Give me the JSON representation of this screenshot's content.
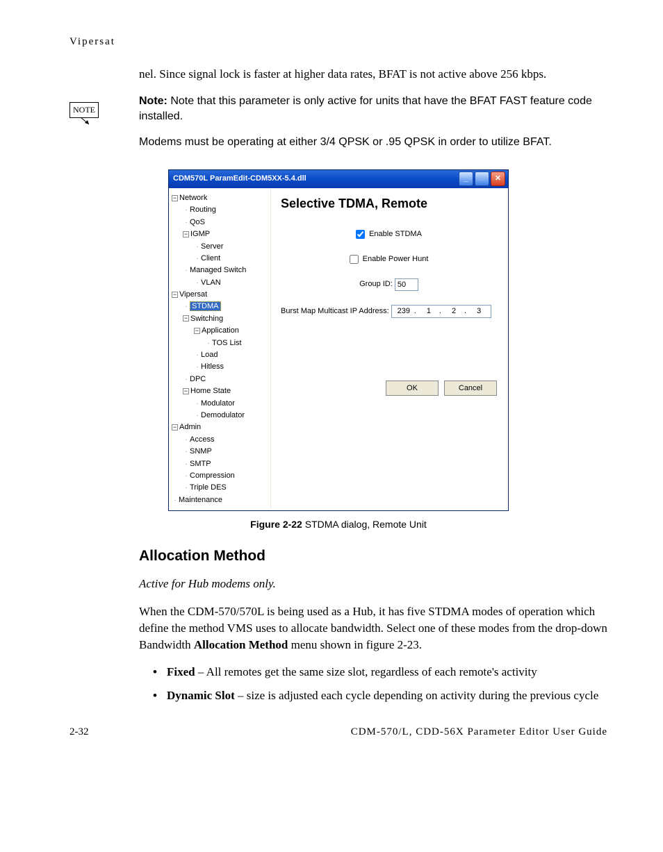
{
  "header": {
    "section": "Vipersat"
  },
  "paragraph_intro": "nel. Since signal lock is faster at higher data rates, BFAT is not active above 256 kbps.",
  "note": {
    "box_label": "NOTE",
    "prefix": "Note:",
    "line1": " Note that this parameter is only active for units that have the BFAT FAST feature code installed.",
    "line2": "Modems must be operating at either 3/4 QPSK or .95 QPSK in order to utilize BFAT."
  },
  "dialog": {
    "title": "CDM570L ParamEdit-CDM5XX-5.4.dll",
    "titlebar_bg_top": "#2a6bd8",
    "titlebar_bg_bottom": "#083aae",
    "body_bg": "#ffffff",
    "frame_bg": "#ece9d8",
    "tree": {
      "items": [
        {
          "label": "Network",
          "level": 0,
          "expanded": true
        },
        {
          "label": "Routing",
          "level": 1
        },
        {
          "label": "QoS",
          "level": 1
        },
        {
          "label": "IGMP",
          "level": 1,
          "expanded": true
        },
        {
          "label": "Server",
          "level": 2
        },
        {
          "label": "Client",
          "level": 2
        },
        {
          "label": "Managed Switch",
          "level": 1
        },
        {
          "label": "VLAN",
          "level": 2
        },
        {
          "label": "Vipersat",
          "level": 0,
          "expanded": true
        },
        {
          "label": "STDMA",
          "level": 1,
          "selected": true
        },
        {
          "label": "Switching",
          "level": 1,
          "expanded": true
        },
        {
          "label": "Application",
          "level": 2,
          "expanded": true
        },
        {
          "label": "TOS List",
          "level": 3
        },
        {
          "label": "Load",
          "level": 2
        },
        {
          "label": "Hitless",
          "level": 2
        },
        {
          "label": "DPC",
          "level": 1
        },
        {
          "label": "Home State",
          "level": 1,
          "expanded": true
        },
        {
          "label": "Modulator",
          "level": 2
        },
        {
          "label": "Demodulator",
          "level": 2
        },
        {
          "label": "Admin",
          "level": 0,
          "expanded": true
        },
        {
          "label": "Access",
          "level": 1
        },
        {
          "label": "SNMP",
          "level": 1
        },
        {
          "label": "SMTP",
          "level": 1
        },
        {
          "label": "Compression",
          "level": 1
        },
        {
          "label": "Triple DES",
          "level": 1
        },
        {
          "label": "Maintenance",
          "level": 0
        }
      ],
      "selected_bg": "#316ac5",
      "selected_fg": "#ffffff"
    },
    "content": {
      "title": "Selective TDMA, Remote",
      "enable_stdma_label": "Enable STDMA",
      "enable_stdma_checked": true,
      "enable_power_hunt_label": "Enable Power Hunt",
      "enable_power_hunt_checked": false,
      "group_id_label": "Group ID:",
      "group_id_value": "50",
      "burst_label": "Burst Map Multicast IP Address:",
      "burst_ip": [
        "239",
        "1",
        "2",
        "3"
      ],
      "ok_label": "OK",
      "cancel_label": "Cancel"
    }
  },
  "figure_caption": {
    "label": "Figure 2-22",
    "text": "   STDMA dialog, Remote Unit"
  },
  "section": {
    "heading": "Allocation Method",
    "subtitle": "Active for Hub modems only",
    "para": "When the CDM-570/570L is being used as a Hub, it has five STDMA modes of operation which define the method VMS uses to allocate bandwidth. Select one of these modes from the drop-down Bandwidth ",
    "para_bold": "Allocation Method",
    "para_tail": " menu shown in figure 2-23.",
    "bullets": [
      {
        "bold": "Fixed",
        "text": " – All remotes get the same size slot, regardless of each remote's activity"
      },
      {
        "bold": "Dynamic Slot",
        "text": " – size is adjusted each cycle depending on activity during the previous cycle"
      }
    ]
  },
  "footer": {
    "page": "2-32",
    "title": "CDM-570/L, CDD-56X Parameter Editor User Guide"
  }
}
